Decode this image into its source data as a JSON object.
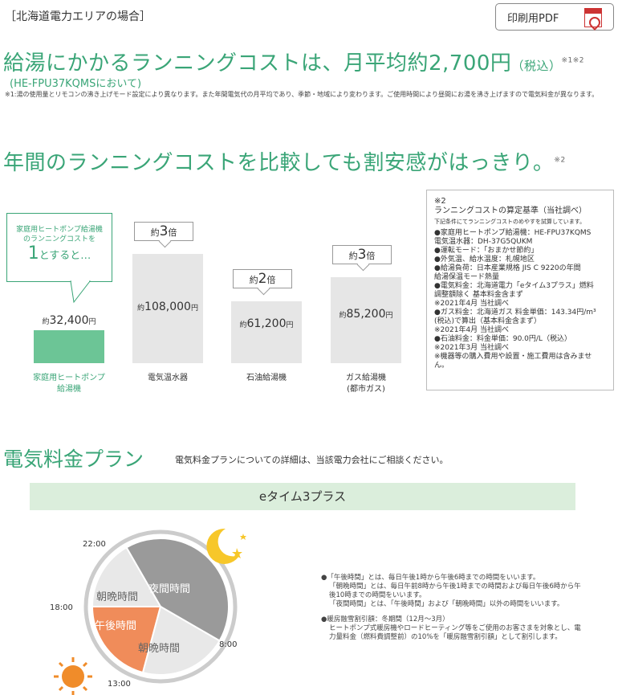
{
  "header": {
    "region_label": "［北海道電力エリアの場合］",
    "pdf_button": "印刷用PDF"
  },
  "headline": {
    "main": "給湯にかかるランニングコストは、月平均約2,700円",
    "tax": "（税込）",
    "sup": "※1※2",
    "model": "(HE-FPU37KQMSにおいて)",
    "note": "※1:湯の使用量とリモコンの沸き上げモード設定により異なります。また年間電気代の月平均であり、季節・地域により変わります。ご使用時間により昼間にお湯を沸き上げますので電気料金が異なります。"
  },
  "comparison": {
    "title": "年間のランニングコストを比較しても割安感がはっきり。",
    "sup": "※2",
    "callout": {
      "line1": "家庭用ヒートポンプ給湯機",
      "line2": "のランニングコストを",
      "big": "1",
      "rest": "とすると…"
    },
    "multiplier_prefix": "約",
    "multiplier_suffix": "倍"
  },
  "chart_data": {
    "type": "bar",
    "categories": [
      "家庭用ヒートポンプ\n給湯機",
      "電気温水器",
      "石油給湯機",
      "ガス給湯機\n(都市ガス)"
    ],
    "values": [
      32400,
      108000,
      61200,
      85200
    ],
    "value_labels": [
      "約32,400",
      "約108,000",
      "約61,200",
      "約85,200"
    ],
    "unit": "円",
    "multipliers": [
      "",
      "3",
      "2",
      "3"
    ],
    "colors": [
      "#6cc596",
      "#e6e6e6",
      "#e6e6e6",
      "#e6e6e6"
    ]
  },
  "basis": {
    "title": "※2\nランニングコストの算定基準（当社調べ）",
    "small": "下記条件にてランニングコストのめやすを試算しています。",
    "items": [
      "●家庭用ヒートポンプ給湯機：HE-FPU37KQMS\n 電気温水器：DH-37G5QUKM",
      "●運転モード：「おまかせ節約」",
      "●外気温、給水温度：札幌地区",
      "●給湯負荷：日本産業規格 JIS C 9220の年間\n 給湯保温モード熱量",
      "●電気料金：北海道電力「eタイム3プラス」燃料\n 調整額除く 基本料金含まず\n ※2021年4月 当社調べ",
      "●ガス料金：北海道ガス 料金単価：143.34円/m³\n (税込)で算出（基本料金含まず）\n ※2021年4月 当社調べ",
      "●石油料金：料金単価：90.0円/L（税込）\n ※2021年3月 当社調べ",
      "※機器等の購入費用や設置・施工費用は含みません。"
    ]
  },
  "plan": {
    "title": "電気料金プラン",
    "note": "電気料金プランについての詳細は、当該電力会社にご相談ください。",
    "name": "eタイム3プラス",
    "times": [
      "22:00",
      "18:00",
      "8:00",
      "13:00"
    ],
    "segments": [
      "夜間時間",
      "朝晩時間",
      "午後時間",
      "朝晩時間"
    ],
    "segment_colors": [
      "#9a9a9a",
      "#e8e8e8",
      "#f08c5a",
      "#e8e8e8"
    ],
    "legend": [
      "●「午後時間」とは、毎日午後1時から午後6時までの時間をいいます。\n「朝晩時間」とは、毎日午前8時から午後1時までの時間および毎日午後6時から午後10時までの時間をいいます。\n「夜間時間」とは、「午後時間」および「朝晩時間」以外の時間をいいます。",
      "●暖房融雪割引額：冬期間（12月～3月）\nヒートポンプ式暖房機やロードヒーティング等をご使用のお客さまを対象とし、電力量料金（燃料費調整前）の10%を「暖房融雪割引額」として割引します。"
    ]
  }
}
